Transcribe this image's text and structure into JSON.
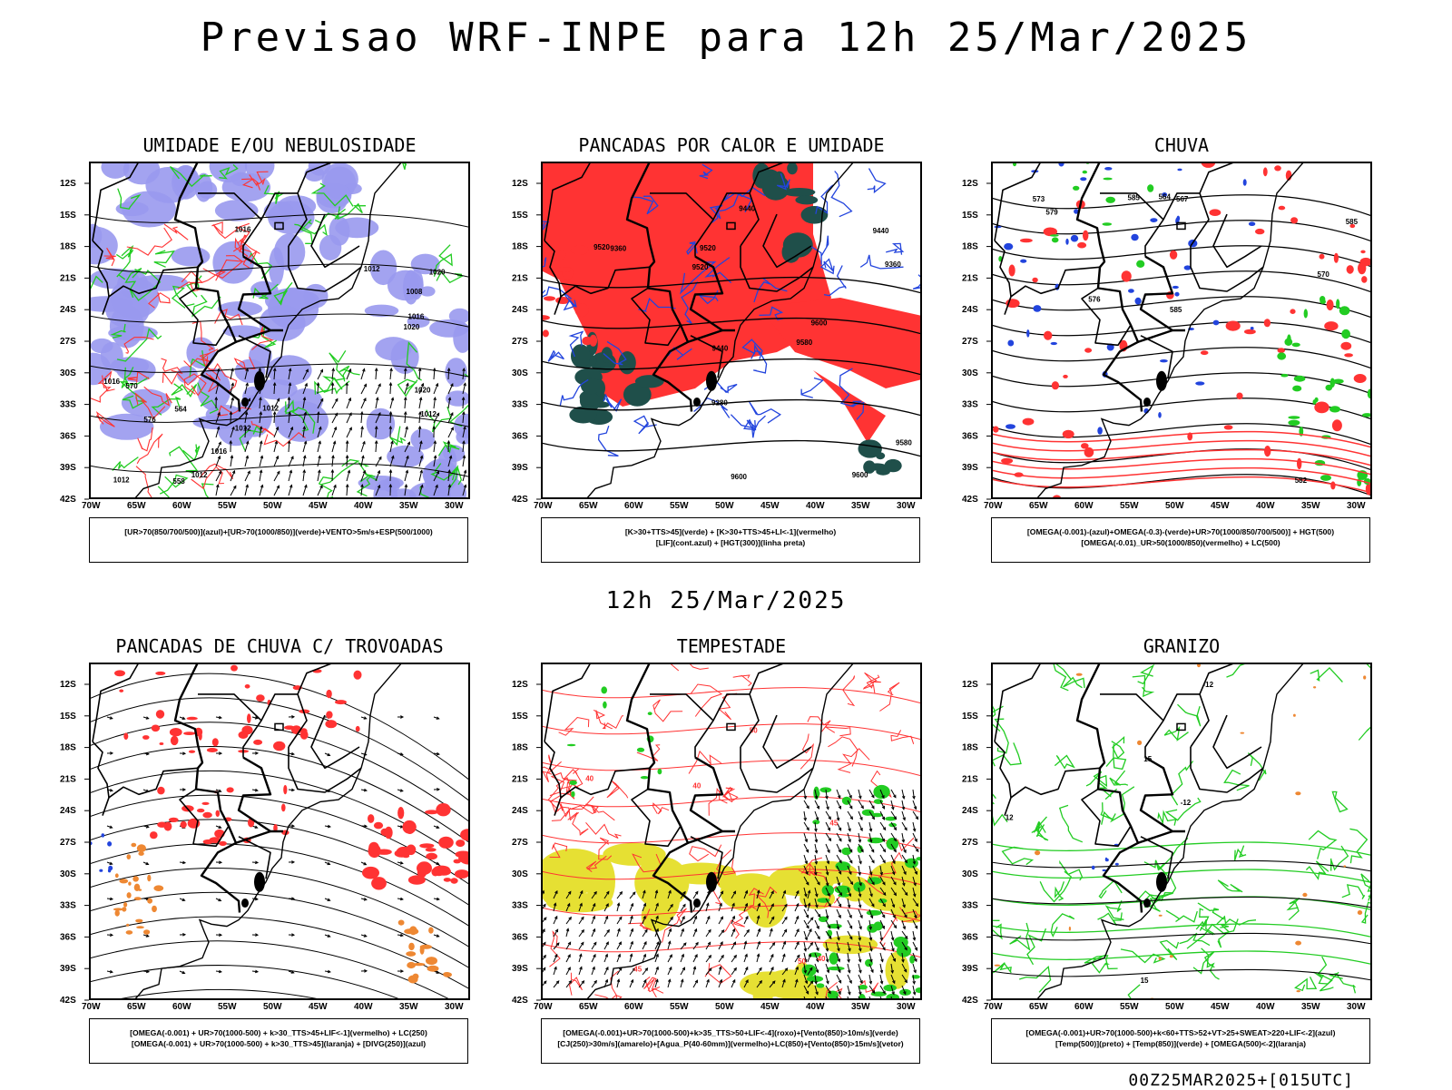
{
  "header": {
    "title": "Previsao WRF-INPE  para 12h 25/Mar/2025",
    "subtitle": "12h 25/Mar/2025",
    "footer": "00Z25MAR2025+[015UTC]"
  },
  "axes": {
    "lat_labels": [
      "12S",
      "15S",
      "18S",
      "21S",
      "24S",
      "27S",
      "30S",
      "33S",
      "36S",
      "39S",
      "42S"
    ],
    "lon_labels": [
      "70W",
      "65W",
      "60W",
      "55W",
      "50W",
      "45W",
      "40W",
      "35W",
      "30W"
    ]
  },
  "colors": {
    "blue_fill": "#9999ee",
    "red": "#ff3333",
    "green": "#22cc22",
    "dark_green": "#1f4f4a",
    "blue": "#2244dd",
    "yellow": "#e6e033",
    "orange": "#ee8833"
  },
  "panels": [
    {
      "id": "umidade",
      "title": "UMIDADE E/OU NEBULOSIDADE",
      "legend": [
        "[UR>70(850/700/500)](azul)+[UR>70(1000/850)](verde)+VENTO>5m/s+ESP(500/1000)"
      ],
      "contour_labels": [
        "1012",
        "1016",
        "1012",
        "1016",
        "1012",
        "1012",
        "1016",
        "1020",
        "1020",
        "1020",
        "1012",
        "1016",
        "1008",
        "1012",
        "576",
        "570",
        "564",
        "558"
      ]
    },
    {
      "id": "pancadas-calor",
      "title": "PANCADAS POR CALOR E UMIDADE",
      "legend": [
        "[K>30+TTS>45](verde) + [K>30+TTS>45+LI<-1](vermelho)",
        "[LIF](cont.azul) + [HGT(300)](linha preta)"
      ],
      "contour_labels": [
        "9580",
        "9580",
        "9600",
        "9520",
        "9600",
        "9600",
        "9520",
        "9440",
        "9520",
        "9440",
        "9360",
        "9280",
        "9360",
        "9440"
      ]
    },
    {
      "id": "chuva",
      "title": "CHUVA",
      "legend": [
        "[OMEGA(-0.001)-(azul)+OMEGA(-0.3)-(verde)+UR>70(1000/850/700/500)] + HGT(500)",
        "[OMEGA(-0.01)_UR>50(1000/850)(vermelho) + LC(500)"
      ],
      "contour_labels": [
        "585",
        "585",
        "585",
        "582",
        "579",
        "576",
        "573",
        "570",
        "567",
        "564"
      ]
    },
    {
      "id": "pancadas-trovoadas",
      "title": "PANCADAS DE CHUVA C/ TROVOADAS",
      "legend": [
        "[OMEGA(-0.001) + UR>70(1000-500) + k>30_TTS>45+LIF<-1](vermelho) + LC(250)",
        "[OMEGA(-0.001) + UR>70(1000-500) + k>30_TTS>45](laranja) + [DIVG(250)](azul)"
      ],
      "contour_labels": []
    },
    {
      "id": "tempestade",
      "title": "TEMPESTADE",
      "legend": [
        "[OMEGA(-0.001)+UR>70(1000-500)+k>35_TTS>50+LIF<-4](roxo)+[Vento(850)>10m/s](verde)",
        "[CJ(250)>30m/s](amarelo)+[Agua_P(40-60mm)](vermelho)+LC(850)+[Vento(850)>15m/s](vetor)"
      ],
      "contour_labels": [
        "40",
        "40",
        "50",
        "45",
        "45",
        "40",
        "50"
      ]
    },
    {
      "id": "granizo",
      "title": "GRANIZO",
      "legend": [
        "[OMEGA(-0.001)+UR>70(1000-500)+k<60+TTS>52+VT>25+SWEAT>220+LIF<-2](azul)",
        "[Temp(500)](preto) + [Temp(850)](verde) + [OMEGA(500)<-2](laranja)"
      ],
      "contour_labels": [
        "-12",
        "-12",
        "12",
        "15",
        "15"
      ]
    }
  ]
}
